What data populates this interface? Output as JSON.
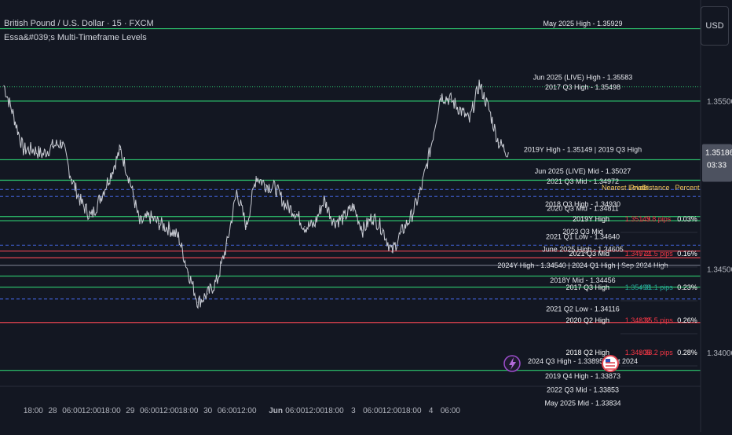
{
  "header": {
    "symbol_title": "British Pound / U.S. Dollar · 15 · FXCM",
    "indicator_title": "Essa&#039;s Multi-Timeframe Levels",
    "currency_button": "USD"
  },
  "price_badge": {
    "price": "1.35186",
    "countdown": "03:33"
  },
  "colors": {
    "background": "#131722",
    "price_line": "#c9ccd4",
    "level_green": "#2ecc71",
    "level_red": "#e0434f",
    "level_blue": "#3d5ac4",
    "level_gray": "#6b7080",
    "table_header": "#f0c35b",
    "table_red": "#f23645",
    "table_green": "#26a69a",
    "badge": "#4d5260"
  },
  "chart_data": {
    "type": "line",
    "title": "British Pound / U.S. Dollar · 15 · FXCM",
    "ylim": [
      1.338,
      1.361
    ],
    "y_ticks": [
      "1.35500",
      "1.34500",
      "1.34000"
    ],
    "y_tick_values": [
      1.355,
      1.345,
      1.34
    ],
    "x_ticks": [
      "18:00",
      "28",
      "06:00",
      "12:00",
      "18:00",
      "29",
      "06:00",
      "12:00",
      "18:00",
      "30",
      "06:00",
      "12:00",
      "Jun",
      "06:00",
      "12:00",
      "18:00",
      "3",
      "06:00",
      "12:00",
      "18:00",
      "4",
      "06:00"
    ],
    "x_tick_index": [
      1,
      3,
      5,
      7,
      9,
      11,
      13,
      15,
      17,
      19,
      21,
      23,
      26,
      28,
      30,
      32,
      34,
      36,
      38,
      40,
      42,
      44
    ],
    "series": [
      {
        "values": [
          1.3559,
          1.3541,
          1.3521,
          1.3521,
          1.3518,
          1.3523,
          1.3525,
          1.3503,
          1.3489,
          1.3481,
          1.3493,
          1.3506,
          1.3521,
          1.3502,
          1.3477,
          1.3481,
          1.3477,
          1.3474,
          1.3469,
          1.3448,
          1.343,
          1.3435,
          1.3443,
          1.3465,
          1.3496,
          1.3475,
          1.3505,
          1.35,
          1.3498,
          1.3488,
          1.3484,
          1.3475,
          1.3476,
          1.3491,
          1.3478,
          1.348,
          1.3487,
          1.3473,
          1.3481,
          1.3474,
          1.346,
          1.3472,
          1.3481,
          1.3497,
          1.3522,
          1.3553,
          1.3551,
          1.3545,
          1.3538,
          1.356,
          1.3545,
          1.3525,
          1.3519
        ]
      }
    ],
    "levels": [
      {
        "price": 1.35929,
        "color": "green",
        "style": "solid"
      },
      {
        "price": 1.35583,
        "color": "green",
        "style": "dotted"
      },
      {
        "price": 1.35498,
        "color": "green",
        "style": "solid"
      },
      {
        "price": 1.35149,
        "color": "green",
        "style": "solid"
      },
      {
        "price": 1.35027,
        "color": "green",
        "style": "solid"
      },
      {
        "price": 1.34972,
        "color": "blue",
        "style": "dashed"
      },
      {
        "price": 1.3493,
        "color": "blue",
        "style": "dashed"
      },
      {
        "price": 1.34811,
        "color": "green",
        "style": "solid"
      },
      {
        "price": 1.34786,
        "color": "green",
        "style": "solid"
      },
      {
        "price": 1.3464,
        "color": "blue",
        "style": "dashed"
      },
      {
        "price": 1.34605,
        "color": "red",
        "style": "solid"
      },
      {
        "price": 1.34565,
        "color": "red",
        "style": "solid"
      },
      {
        "price": 1.3452,
        "color": "gray",
        "style": "solid"
      },
      {
        "price": 1.34456,
        "color": "green",
        "style": "solid"
      },
      {
        "price": 1.3439,
        "color": "green",
        "style": "solid"
      },
      {
        "price": 1.3432,
        "color": "blue",
        "style": "dashed"
      },
      {
        "price": 1.3418,
        "color": "red",
        "style": "solid"
      },
      {
        "price": 1.33895,
        "color": "green",
        "style": "solid"
      }
    ],
    "level_labels": [
      {
        "text": "May 2025 High - 1.35929",
        "price": 1.3596
      },
      {
        "text": "Jun 2025 (LIVE) High - 1.35583",
        "price": 1.3564
      },
      {
        "text": "2017 Q3 High - 1.35498",
        "price": 1.3558
      },
      {
        "text": "2019Y High - 1.35149 | 2019 Q3 High",
        "price": 1.3521
      },
      {
        "text": "Jun 2025 (LIVE) Mid - 1.35027",
        "price": 1.3508
      },
      {
        "text": "2021 Q3 Mid - 1.34972",
        "price": 1.3502
      },
      {
        "text": "2018 Q3 High - 1.34930",
        "price": 1.34885
      },
      {
        "text": "2020 Q3 Mid - 1.34811",
        "price": 1.3486
      },
      {
        "text": "2023 Q3 Mid",
        "price": 1.3472
      },
      {
        "text": "2021 Q1 Low - 1.34640",
        "price": 1.3469
      },
      {
        "text": "June 2025 High - 1.34605",
        "price": 1.34615
      },
      {
        "text": "2024Y High - 1.34540 | 2024 Q1 High | Sep 2024 High",
        "price": 1.3452
      },
      {
        "text": "2018Y Mid - 1.34456",
        "price": 1.3443
      },
      {
        "text": "2021 Q2 Low - 1.34116",
        "price": 1.3426
      },
      {
        "text": "2024 Q3 High - 1.33895 | Oct 2024",
        "price": 1.3395
      },
      {
        "text": "2019 Q4 High - 1.33873",
        "price": 1.3386
      },
      {
        "text": "2022 Q3 Mid - 1.33853",
        "price": 1.3378
      },
      {
        "text": "May 2025 Mid - 1.33834",
        "price": 1.337
      }
    ]
  },
  "levels_table": {
    "headers": [
      "Nearest Levels",
      "Price",
      "Distance",
      "Percent"
    ],
    "rows": [
      {
        "level": "2019Y High",
        "price": "1.35149",
        "distance": "↓ 3.8 pips",
        "percent": "0.03%",
        "dir": "down"
      },
      {
        "level": "2021 Q3 Mid",
        "price": "1.34972",
        "distance": "↓ 21.5 pips",
        "percent": "0.16%",
        "dir": "down"
      },
      {
        "level": "2017 Q3 High",
        "price": "1.35498",
        "distance": "↑ 31.1 pips",
        "percent": "0.23%",
        "dir": "up"
      },
      {
        "level": "2020 Q2 High",
        "price": "1.34832",
        "distance": "↓ 35.5 pips",
        "percent": "0.26%",
        "dir": "down"
      },
      {
        "level": "2018 Q2 High",
        "price": "1.34805",
        "distance": "↓ 38.2 pips",
        "percent": "0.28%",
        "dir": "down"
      }
    ]
  }
}
